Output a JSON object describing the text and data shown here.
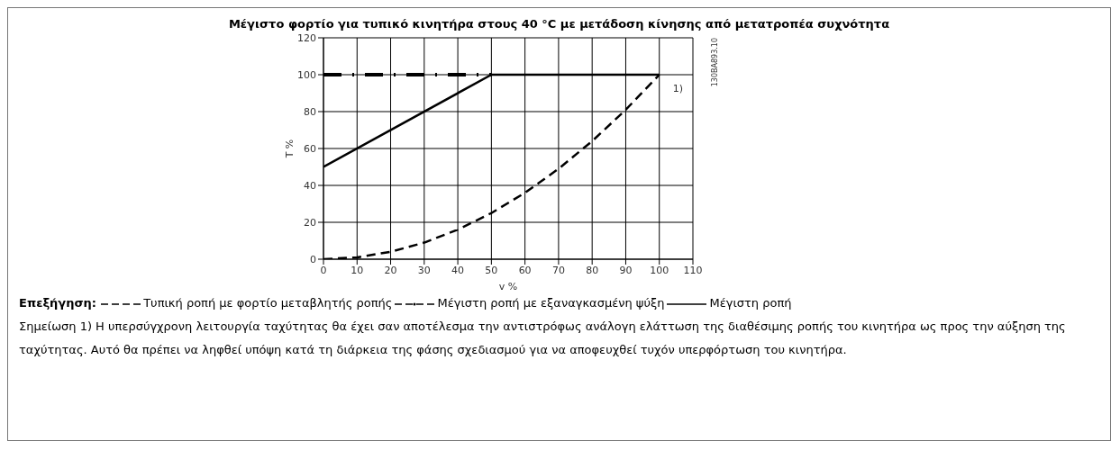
{
  "chart_data": {
    "type": "line",
    "title": "Μέγιστο φορτίο για τυπικό κινητήρα στους 40 °C με μετάδοση κίνησης από μετατροπέα συχνότητα",
    "xlabel": "v %",
    "ylabel": "T %",
    "legend_title": "Επεξήγηση:",
    "xlim": [
      0,
      110
    ],
    "xticks": [
      0,
      10,
      20,
      30,
      40,
      50,
      60,
      70,
      80,
      90,
      100,
      110
    ],
    "ylim": [
      0,
      120
    ],
    "yticks": [
      0,
      20,
      40,
      60,
      80,
      100,
      120
    ],
    "grid": true,
    "legend": "bottom",
    "marker": "none",
    "series": [
      {
        "name": "Τυπική ροπή με φορτίο μεταβλητής ροπής",
        "color": "#000000",
        "line_style": "dashed",
        "x": [
          0,
          10,
          20,
          30,
          40,
          50,
          60,
          70,
          80,
          90,
          100
        ],
        "values": [
          0,
          1,
          4,
          9,
          16,
          25,
          36,
          49,
          64,
          81,
          100
        ]
      },
      {
        "name": "Μέγιστη ροπή με εξαναγκασμένη ψύξη",
        "color": "#000000",
        "line_style": "dashdot",
        "x": [
          0,
          50
        ],
        "values": [
          100,
          100
        ]
      },
      {
        "name": "Μέγιστη ροπή",
        "color": "#000000",
        "line_style": "solid",
        "x": [
          0,
          50,
          100
        ],
        "values": [
          50,
          100,
          100
        ]
      }
    ],
    "annotations": [
      {
        "text": "1)",
        "x": 100,
        "y": 100
      },
      "130BA893.10",
      "Σημείωση 1) Η υπερσύγχρονη λειτουργία ταχύτητας θα έχει σαν αποτέλεσμα την αντιστρόφως ανάλογη ελάττωση της διαθέσιμης ροπής του κινητήρα ως προς την αύξηση της ταχύτητας. Αυτό θα πρέπει να ληφθεί υπόψη κατά τη διάρκεια της φάσης σχεδιασμού για να αποφευχθεί τυχόν υπερφόρτωση του κινητήρα."
    ]
  }
}
